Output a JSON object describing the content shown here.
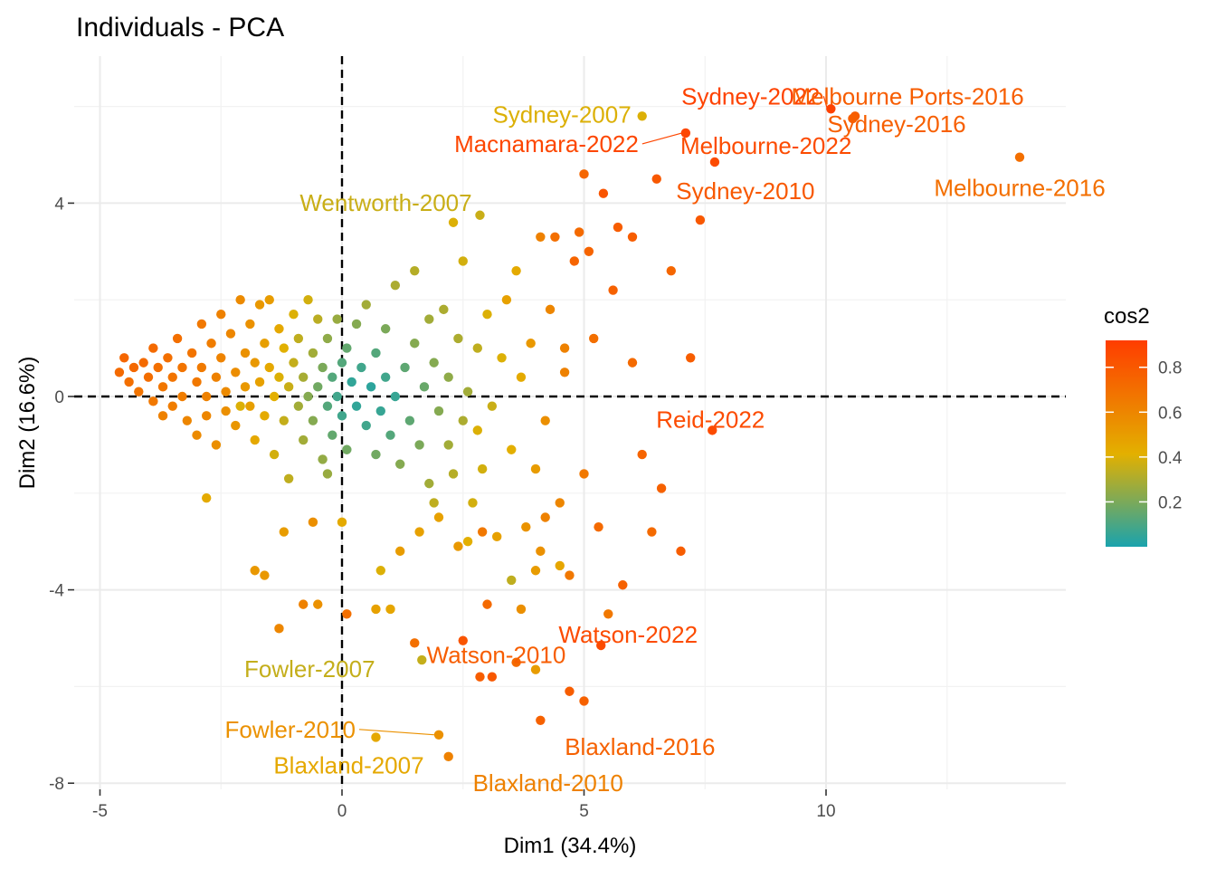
{
  "chart_data": {
    "type": "scatter",
    "title": "Individuals - PCA",
    "xlabel": "Dim1 (34.4%)",
    "ylabel": "Dim2 (16.6%)",
    "xlim": [
      -5.5,
      15.0
    ],
    "ylim": [
      -8.2,
      7.3
    ],
    "xticks": [
      -5,
      0,
      5,
      10
    ],
    "xtick_labels": [
      "-5",
      "0",
      "5",
      "10"
    ],
    "yticks": [
      -8,
      -4,
      0,
      4
    ],
    "ytick_labels": [
      "-8",
      "-4",
      "0",
      "4"
    ],
    "grid": true,
    "reference_lines": {
      "x": 0,
      "y": 0,
      "style": "dashed"
    },
    "color_scale": {
      "name": "cos2",
      "ticks": [
        0.2,
        0.4,
        0.6,
        0.8
      ],
      "tick_labels": [
        "0.2",
        "0.4",
        "0.6",
        "0.8"
      ],
      "range": [
        0.0,
        0.92
      ],
      "colors": [
        "#1aa3ad",
        "#e3b000",
        "#ff3d00"
      ],
      "legend_position": "right"
    },
    "labeled_points": [
      {
        "label": "Sydney-2022",
        "x": 10.1,
        "y": 5.95,
        "cos2": 0.9
      },
      {
        "label": "Melbourne Ports-2016",
        "x": 10.6,
        "y": 5.8,
        "cos2": 0.78
      },
      {
        "label": "Sydney-2007",
        "x": 6.2,
        "y": 5.8,
        "cos2": 0.4
      },
      {
        "label": "Macnamara-2022",
        "x": 7.1,
        "y": 5.45,
        "cos2": 0.88
      },
      {
        "label": "Melbourne-2022",
        "x": 7.7,
        "y": 4.85,
        "cos2": 0.86
      },
      {
        "label": "Sydney-2016",
        "x": 10.55,
        "y": 5.75,
        "cos2": 0.77
      },
      {
        "label": "Melbourne-2016",
        "x": 14.0,
        "y": 4.95,
        "cos2": 0.7
      },
      {
        "label": "Sydney-2010",
        "x": 7.4,
        "y": 3.65,
        "cos2": 0.8
      },
      {
        "label": "Wentworth-2007",
        "x": 2.85,
        "y": 3.75,
        "cos2": 0.36
      },
      {
        "label": "Reid-2022",
        "x": 7.65,
        "y": -0.7,
        "cos2": 0.86
      },
      {
        "label": "Watson-2022",
        "x": 5.35,
        "y": -5.15,
        "cos2": 0.86
      },
      {
        "label": "Fowler-2007",
        "x": 1.65,
        "y": -5.45,
        "cos2": 0.35
      },
      {
        "label": "Fowler-2010",
        "x": 2.0,
        "y": -7.0,
        "cos2": 0.55
      },
      {
        "label": "Watson-2010",
        "x": 2.85,
        "y": -5.8,
        "cos2": 0.78
      },
      {
        "label": "Blaxland-2016",
        "x": 4.1,
        "y": -6.7,
        "cos2": 0.76
      },
      {
        "label": "Blaxland-2007",
        "x": 0.7,
        "y": -7.05,
        "cos2": 0.45
      },
      {
        "label": "Blaxland-2010",
        "x": 2.2,
        "y": -7.45,
        "cos2": 0.62
      }
    ],
    "points": [
      [
        -4.6,
        0.5,
        0.72
      ],
      [
        -4.5,
        0.8,
        0.74
      ],
      [
        -4.4,
        0.3,
        0.7
      ],
      [
        -4.3,
        0.6,
        0.73
      ],
      [
        -4.2,
        0.1,
        0.68
      ],
      [
        -4.1,
        0.7,
        0.72
      ],
      [
        -4.0,
        0.4,
        0.71
      ],
      [
        -3.9,
        -0.1,
        0.66
      ],
      [
        -3.9,
        1.0,
        0.72
      ],
      [
        -3.8,
        0.6,
        0.7
      ],
      [
        -3.7,
        0.2,
        0.67
      ],
      [
        -3.7,
        -0.4,
        0.62
      ],
      [
        -3.6,
        0.8,
        0.7
      ],
      [
        -3.5,
        0.4,
        0.68
      ],
      [
        -3.5,
        -0.2,
        0.64
      ],
      [
        -3.4,
        1.2,
        0.7
      ],
      [
        -3.3,
        0.6,
        0.68
      ],
      [
        -3.3,
        0.0,
        0.64
      ],
      [
        -3.2,
        -0.5,
        0.6
      ],
      [
        -3.1,
        0.9,
        0.68
      ],
      [
        -3.0,
        0.3,
        0.66
      ],
      [
        -3.0,
        -0.8,
        0.58
      ],
      [
        -2.9,
        1.5,
        0.66
      ],
      [
        -2.9,
        0.6,
        0.65
      ],
      [
        -2.8,
        0.0,
        0.62
      ],
      [
        -2.8,
        -0.4,
        0.6
      ],
      [
        -2.7,
        1.1,
        0.64
      ],
      [
        -2.6,
        0.4,
        0.62
      ],
      [
        -2.6,
        -1.0,
        0.56
      ],
      [
        -2.5,
        1.7,
        0.62
      ],
      [
        -2.5,
        0.8,
        0.61
      ],
      [
        -2.4,
        0.1,
        0.58
      ],
      [
        -2.4,
        -0.3,
        0.56
      ],
      [
        -2.3,
        1.3,
        0.6
      ],
      [
        -2.2,
        0.5,
        0.57
      ],
      [
        -2.2,
        -0.6,
        0.53
      ],
      [
        -2.1,
        2.0,
        0.58
      ],
      [
        -2.0,
        0.9,
        0.55
      ],
      [
        -2.0,
        0.2,
        0.52
      ],
      [
        -1.9,
        1.5,
        0.55
      ],
      [
        -1.9,
        -0.2,
        0.49
      ],
      [
        -1.8,
        0.7,
        0.52
      ],
      [
        -1.8,
        -0.9,
        0.45
      ],
      [
        -1.7,
        1.9,
        0.52
      ],
      [
        -1.7,
        0.3,
        0.48
      ],
      [
        -1.6,
        1.1,
        0.49
      ],
      [
        -1.6,
        -0.4,
        0.44
      ],
      [
        -1.5,
        2.0,
        0.5
      ],
      [
        -1.5,
        0.6,
        0.45
      ],
      [
        -1.4,
        0.0,
        0.42
      ],
      [
        -1.4,
        -1.2,
        0.38
      ],
      [
        -1.3,
        1.4,
        0.45
      ],
      [
        -1.3,
        0.4,
        0.4
      ],
      [
        -1.2,
        -0.5,
        0.35
      ],
      [
        -1.2,
        1.0,
        0.41
      ],
      [
        -1.1,
        0.2,
        0.36
      ],
      [
        -1.1,
        -1.7,
        0.34
      ],
      [
        -1.0,
        1.7,
        0.4
      ],
      [
        -1.0,
        0.7,
        0.35
      ],
      [
        -0.9,
        -0.2,
        0.28
      ],
      [
        -0.9,
        1.2,
        0.34
      ],
      [
        -0.8,
        0.4,
        0.29
      ],
      [
        -0.8,
        -0.9,
        0.28
      ],
      [
        -0.7,
        2.0,
        0.38
      ],
      [
        -0.7,
        0.0,
        0.22
      ],
      [
        -0.6,
        0.9,
        0.28
      ],
      [
        -0.6,
        -0.5,
        0.22
      ],
      [
        -0.5,
        1.6,
        0.33
      ],
      [
        -0.5,
        0.2,
        0.18
      ],
      [
        -0.4,
        -1.3,
        0.25
      ],
      [
        -0.4,
        0.6,
        0.2
      ],
      [
        -0.3,
        1.2,
        0.24
      ],
      [
        -0.3,
        -0.2,
        0.12
      ],
      [
        -0.2,
        0.4,
        0.12
      ],
      [
        -0.2,
        -0.8,
        0.15
      ],
      [
        -0.1,
        1.6,
        0.26
      ],
      [
        -0.1,
        0.0,
        0.08
      ],
      [
        0.0,
        0.7,
        0.12
      ],
      [
        0.0,
        -0.4,
        0.08
      ],
      [
        0.1,
        1.0,
        0.15
      ],
      [
        0.1,
        -1.1,
        0.18
      ],
      [
        0.2,
        0.3,
        0.05
      ],
      [
        0.3,
        -0.2,
        0.05
      ],
      [
        0.3,
        1.5,
        0.22
      ],
      [
        0.4,
        0.6,
        0.08
      ],
      [
        0.5,
        -0.6,
        0.08
      ],
      [
        0.5,
        1.9,
        0.28
      ],
      [
        0.6,
        0.2,
        0.04
      ],
      [
        0.7,
        -1.2,
        0.18
      ],
      [
        0.7,
        0.9,
        0.12
      ],
      [
        0.8,
        -0.3,
        0.06
      ],
      [
        0.9,
        1.4,
        0.2
      ],
      [
        0.9,
        0.4,
        0.08
      ],
      [
        1.0,
        -0.8,
        0.12
      ],
      [
        1.1,
        0.0,
        0.06
      ],
      [
        1.1,
        2.3,
        0.3
      ],
      [
        1.2,
        -1.4,
        0.22
      ],
      [
        1.3,
        0.6,
        0.14
      ],
      [
        1.4,
        -0.5,
        0.14
      ],
      [
        1.5,
        1.1,
        0.22
      ],
      [
        1.5,
        2.6,
        0.32
      ],
      [
        1.6,
        -1.0,
        0.2
      ],
      [
        1.7,
        0.2,
        0.16
      ],
      [
        1.8,
        -1.8,
        0.28
      ],
      [
        1.8,
        1.6,
        0.28
      ],
      [
        1.9,
        0.7,
        0.22
      ],
      [
        2.0,
        -0.3,
        0.22
      ],
      [
        2.1,
        1.8,
        0.3
      ],
      [
        2.2,
        -1.0,
        0.28
      ],
      [
        2.2,
        0.4,
        0.24
      ],
      [
        2.3,
        -1.6,
        0.32
      ],
      [
        2.4,
        1.2,
        0.3
      ],
      [
        2.5,
        2.8,
        0.38
      ],
      [
        2.5,
        -0.5,
        0.3
      ],
      [
        2.6,
        0.1,
        0.28
      ],
      [
        2.7,
        -2.2,
        0.38
      ],
      [
        2.8,
        1.0,
        0.34
      ],
      [
        2.9,
        -1.5,
        0.38
      ],
      [
        3.0,
        1.7,
        0.4
      ],
      [
        3.1,
        -0.2,
        0.36
      ],
      [
        3.2,
        -2.9,
        0.48
      ],
      [
        3.3,
        0.8,
        0.4
      ],
      [
        3.4,
        2.0,
        0.48
      ],
      [
        3.5,
        -1.1,
        0.42
      ],
      [
        3.6,
        2.6,
        0.44
      ],
      [
        3.7,
        0.4,
        0.44
      ],
      [
        3.8,
        -2.7,
        0.54
      ],
      [
        3.9,
        1.1,
        0.52
      ],
      [
        4.0,
        -1.5,
        0.5
      ],
      [
        4.1,
        -3.2,
        0.55
      ],
      [
        4.2,
        -0.5,
        0.56
      ],
      [
        4.3,
        1.8,
        0.6
      ],
      [
        4.4,
        3.3,
        0.7
      ],
      [
        4.5,
        -2.2,
        0.6
      ],
      [
        4.6,
        0.5,
        0.62
      ],
      [
        4.7,
        -3.7,
        0.66
      ],
      [
        4.8,
        2.8,
        0.75
      ],
      [
        5.0,
        -1.6,
        0.66
      ],
      [
        5.1,
        3.0,
        0.75
      ],
      [
        5.2,
        1.2,
        0.7
      ],
      [
        5.3,
        -2.7,
        0.72
      ],
      [
        5.4,
        4.2,
        0.82
      ],
      [
        5.6,
        2.2,
        0.76
      ],
      [
        5.8,
        -3.9,
        0.76
      ],
      [
        6.0,
        0.7,
        0.72
      ],
      [
        6.2,
        -1.2,
        0.75
      ],
      [
        6.5,
        4.5,
        0.8
      ],
      [
        6.6,
        -1.9,
        0.76
      ],
      [
        7.0,
        -3.2,
        0.78
      ],
      [
        7.2,
        0.8,
        0.78
      ],
      [
        -2.8,
        -2.1,
        0.44
      ],
      [
        -1.8,
        -3.6,
        0.52
      ],
      [
        -1.3,
        -4.8,
        0.6
      ],
      [
        -0.8,
        -4.3,
        0.62
      ],
      [
        -0.5,
        -4.3,
        0.55
      ],
      [
        0.1,
        -4.5,
        0.7
      ],
      [
        0.7,
        -4.4,
        0.48
      ],
      [
        1.0,
        -4.4,
        0.46
      ],
      [
        1.5,
        -5.1,
        0.7
      ],
      [
        2.5,
        -5.05,
        0.82
      ],
      [
        3.1,
        -5.8,
        0.8
      ],
      [
        3.0,
        -4.3,
        0.72
      ],
      [
        3.6,
        -5.5,
        0.72
      ],
      [
        4.0,
        -5.65,
        0.5
      ],
      [
        4.7,
        -6.1,
        0.78
      ],
      [
        5.0,
        -6.3,
        0.76
      ],
      [
        -1.6,
        -3.7,
        0.52
      ],
      [
        -1.2,
        -2.8,
        0.5
      ],
      [
        -0.6,
        -2.6,
        0.56
      ],
      [
        0.0,
        -2.6,
        0.44
      ],
      [
        0.8,
        -3.6,
        0.4
      ],
      [
        1.6,
        -2.8,
        0.48
      ],
      [
        2.0,
        -2.5,
        0.48
      ],
      [
        2.6,
        -3.0,
        0.42
      ],
      [
        3.5,
        -3.8,
        0.34
      ],
      [
        4.2,
        -2.5,
        0.62
      ],
      [
        4.0,
        -3.6,
        0.5
      ],
      [
        4.5,
        -3.5,
        0.46
      ],
      [
        5.5,
        -4.5,
        0.66
      ],
      [
        6.4,
        -2.8,
        0.72
      ],
      [
        3.7,
        -4.4,
        0.56
      ],
      [
        1.2,
        -3.2,
        0.5
      ],
      [
        2.9,
        -2.8,
        0.66
      ],
      [
        -2.1,
        -0.2,
        0.4
      ],
      [
        -0.3,
        -1.6,
        0.26
      ],
      [
        1.9,
        -2.2,
        0.34
      ],
      [
        2.4,
        -3.1,
        0.52
      ],
      [
        2.3,
        3.6,
        0.4
      ],
      [
        2.8,
        -0.7,
        0.4
      ],
      [
        4.1,
        3.3,
        0.62
      ],
      [
        4.9,
        3.4,
        0.72
      ],
      [
        5.7,
        3.5,
        0.78
      ],
      [
        6.0,
        3.3,
        0.78
      ],
      [
        6.8,
        2.6,
        0.74
      ],
      [
        5.0,
        4.6,
        0.74
      ],
      [
        4.6,
        1.0,
        0.62
      ]
    ]
  }
}
